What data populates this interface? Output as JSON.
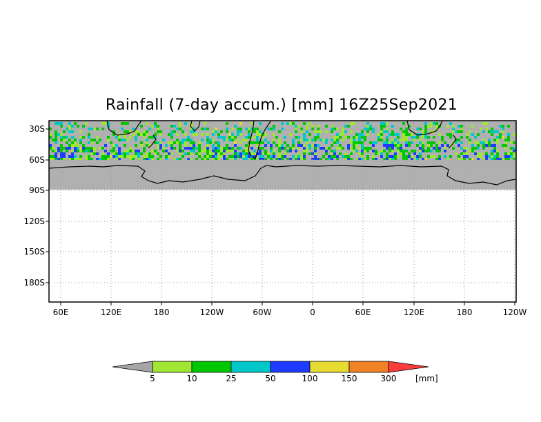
{
  "title": "Rainfall (7-day accum.) [mm] 16Z25Sep2021",
  "map": {
    "lat_ticks": [
      "30S",
      "60S",
      "90S",
      "120S",
      "150S",
      "180S"
    ],
    "lon_ticks": [
      "60E",
      "120E",
      "180",
      "120W",
      "60W",
      "0",
      "60E",
      "120E",
      "180",
      "120W"
    ],
    "colors": {
      "land": "#b0b0b0",
      "coast": "#000000",
      "grid": "#9a9a9a"
    }
  },
  "colorbar": {
    "labels": [
      "5",
      "10",
      "25",
      "50",
      "100",
      "150",
      "300"
    ],
    "unit": "[mm]",
    "colors": [
      "#a6a6a6",
      "#a0e632",
      "#00c800",
      "#00c8c8",
      "#1e3cff",
      "#e6dc32",
      "#f08228",
      "#fa3c3c"
    ]
  }
}
